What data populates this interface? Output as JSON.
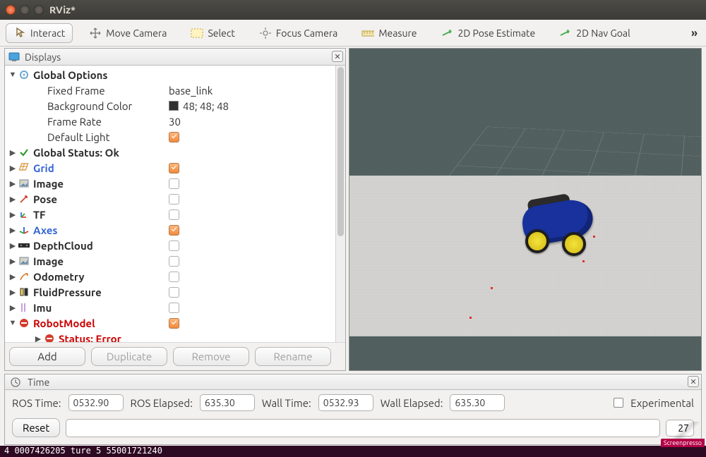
{
  "window": {
    "title": "RViz*"
  },
  "toolbar": {
    "interact": "Interact",
    "move_camera": "Move Camera",
    "select": "Select",
    "focus_camera": "Focus Camera",
    "measure": "Measure",
    "pose_estimate": "2D Pose Estimate",
    "nav_goal": "2D Nav Goal",
    "overflow": "»"
  },
  "displays": {
    "title": "Displays",
    "global_options": {
      "label": "Global Options",
      "fixed_frame": {
        "label": "Fixed Frame",
        "value": "base_link"
      },
      "bg_color": {
        "label": "Background Color",
        "value": "48; 48; 48",
        "swatch": "#303030"
      },
      "frame_rate": {
        "label": "Frame Rate",
        "value": "30"
      },
      "default_light": {
        "label": "Default Light",
        "checked": true
      }
    },
    "global_status": {
      "label": "Global Status: Ok"
    },
    "items": [
      {
        "label": "Grid",
        "link": true,
        "checked": true,
        "icon": "grid"
      },
      {
        "label": "Image",
        "link": false,
        "checked": false,
        "icon": "image"
      },
      {
        "label": "Pose",
        "link": false,
        "checked": false,
        "icon": "pose"
      },
      {
        "label": "TF",
        "link": false,
        "checked": false,
        "icon": "tf"
      },
      {
        "label": "Axes",
        "link": true,
        "checked": true,
        "icon": "axes"
      },
      {
        "label": "DepthCloud",
        "link": false,
        "checked": false,
        "icon": "depth"
      },
      {
        "label": "Image",
        "link": false,
        "checked": false,
        "icon": "image"
      },
      {
        "label": "Odometry",
        "link": false,
        "checked": false,
        "icon": "odom"
      },
      {
        "label": "FluidPressure",
        "link": false,
        "checked": false,
        "icon": "fluid"
      },
      {
        "label": "Imu",
        "link": false,
        "checked": false,
        "icon": "imu"
      },
      {
        "label": "RobotModel",
        "link": false,
        "checked": true,
        "icon": "error",
        "err": true
      }
    ],
    "status_error": "Status: Error",
    "buttons": {
      "add": "Add",
      "duplicate": "Duplicate",
      "remove": "Remove",
      "rename": "Rename"
    }
  },
  "viewport": {
    "bg": "#52615f",
    "ground": "#d3d2d0",
    "robot_body": "#19319c",
    "wheel": "#f4e33a"
  },
  "time": {
    "title": "Time",
    "ros_time": {
      "label": "ROS Time:",
      "value": "0532.90"
    },
    "ros_elapsed": {
      "label": "ROS Elapsed:",
      "value": "635.30"
    },
    "wall_time": {
      "label": "Wall Time:",
      "value": "0532.93"
    },
    "wall_elapsed": {
      "label": "Wall Elapsed:",
      "value": "635.30"
    },
    "experimental": "Experimental",
    "reset": "Reset",
    "fps": "27"
  },
  "terminal_peek": "4  0007426205       ture   5 55001721240",
  "watermark": "Screenpresso"
}
